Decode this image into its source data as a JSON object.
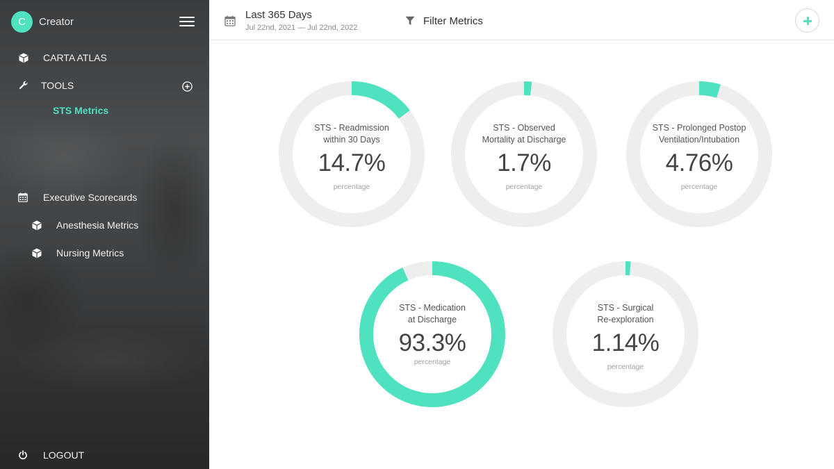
{
  "sidebar": {
    "avatar_letter": "C",
    "app_name": "Creator",
    "items": [
      {
        "label": "CARTA ATLAS",
        "icon": "cube-icon"
      },
      {
        "label": "TOOLS",
        "icon": "wrench-icon"
      },
      {
        "label": "STS Metrics",
        "icon": ""
      },
      {
        "label": "Executive Scorecards",
        "icon": "calendar-icon"
      },
      {
        "label": "Anesthesia Metrics",
        "icon": "cube-icon"
      },
      {
        "label": "Nursing Metrics",
        "icon": "cube-icon"
      },
      {
        "label": "LOGOUT",
        "icon": "power-icon"
      }
    ]
  },
  "header": {
    "date_title": "Last 365 Days",
    "date_range": "Jul 22nd, 2021 — Jul 22nd, 2022",
    "filter_label": "Filter Metrics"
  },
  "colors": {
    "accent": "#4fe2c1",
    "track": "#eeeeee"
  },
  "metrics": [
    {
      "title_line1": "STS - Readmission",
      "title_line2": "within 30 Days",
      "value": "14.7%",
      "unit": "percentage",
      "fraction": 0.147
    },
    {
      "title_line1": "STS - Observed",
      "title_line2": "Mortality at Discharge",
      "value": "1.7%",
      "unit": "percentage",
      "fraction": 0.017
    },
    {
      "title_line1": "STS - Prolonged Postop",
      "title_line2": "Ventilation/Intubation",
      "value": "4.76%",
      "unit": "percentage",
      "fraction": 0.0476
    },
    {
      "title_line1": "STS - Medication",
      "title_line2": "at Discharge",
      "value": "93.3%",
      "unit": "percentage",
      "fraction": 0.933
    },
    {
      "title_line1": "STS - Surgical",
      "title_line2": "Re-exploration",
      "value": "1.14%",
      "unit": "percentage",
      "fraction": 0.0114
    }
  ]
}
